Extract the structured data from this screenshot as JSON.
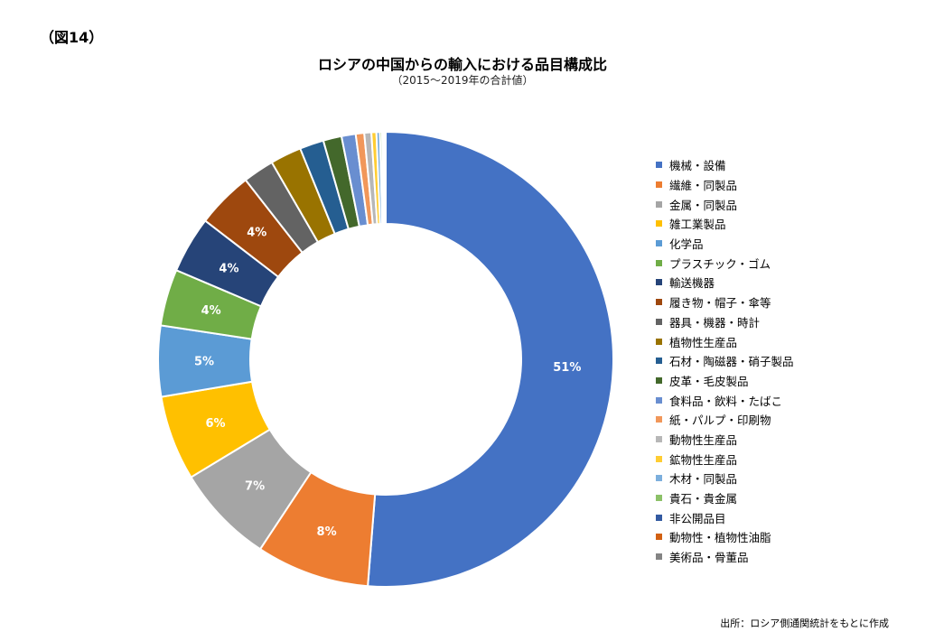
{
  "figure_label": "（図14）",
  "source": "出所：ロシア側通関統計をもとに作成",
  "chart_data": {
    "type": "pie",
    "donut": true,
    "title": "ロシアの中国からの輸入における品目構成比",
    "subtitle": "（2015～2019年の合計値）",
    "legend_position": "right",
    "slices": [
      {
        "name": "機械・設備",
        "value": 51,
        "label": "51%",
        "color": "#4472C4"
      },
      {
        "name": "繊維・同製品",
        "value": 8,
        "label": "8%",
        "color": "#ED7D31"
      },
      {
        "name": "金属・同製品",
        "value": 7,
        "label": "7%",
        "color": "#A5A5A5"
      },
      {
        "name": "雑工業製品",
        "value": 6,
        "label": "6%",
        "color": "#FFC000"
      },
      {
        "name": "化学品",
        "value": 5,
        "label": "5%",
        "color": "#5B9BD5"
      },
      {
        "name": "プラスチック・ゴム",
        "value": 4,
        "label": "4%",
        "color": "#70AD47"
      },
      {
        "name": "輸送機器",
        "value": 4,
        "label": "4%",
        "color": "#264478"
      },
      {
        "name": "履き物・帽子・傘等",
        "value": 4,
        "label": "4%",
        "color": "#9E480E"
      },
      {
        "name": "器具・機器・時計",
        "value": 2.2,
        "label": "",
        "color": "#636363"
      },
      {
        "name": "植物性生産品",
        "value": 2.2,
        "label": "",
        "color": "#997300"
      },
      {
        "name": "石材・陶磁器・硝子製品",
        "value": 1.7,
        "label": "",
        "color": "#255E91"
      },
      {
        "name": "皮革・毛皮製品",
        "value": 1.3,
        "label": "",
        "color": "#43682B"
      },
      {
        "name": "食料品・飲料・たばこ",
        "value": 1.0,
        "label": "",
        "color": "#698ED0"
      },
      {
        "name": "紙・パルプ・印刷物",
        "value": 0.6,
        "label": "",
        "color": "#F1975A"
      },
      {
        "name": "動物性生産品",
        "value": 0.5,
        "label": "",
        "color": "#B7B7B7"
      },
      {
        "name": "鉱物性生産品",
        "value": 0.35,
        "label": "",
        "color": "#FFCD33"
      },
      {
        "name": "木材・同製品",
        "value": 0.25,
        "label": "",
        "color": "#7CAFDD"
      },
      {
        "name": "貴石・貴金属",
        "value": 0.15,
        "label": "",
        "color": "#8CC168"
      },
      {
        "name": "非公開品目",
        "value": 0.1,
        "label": "",
        "color": "#335AA1"
      },
      {
        "name": "動物性・植物性油脂",
        "value": 0.1,
        "label": "",
        "color": "#D26012"
      },
      {
        "name": "美術品・骨董品",
        "value": 0.05,
        "label": "",
        "color": "#848484"
      }
    ]
  }
}
